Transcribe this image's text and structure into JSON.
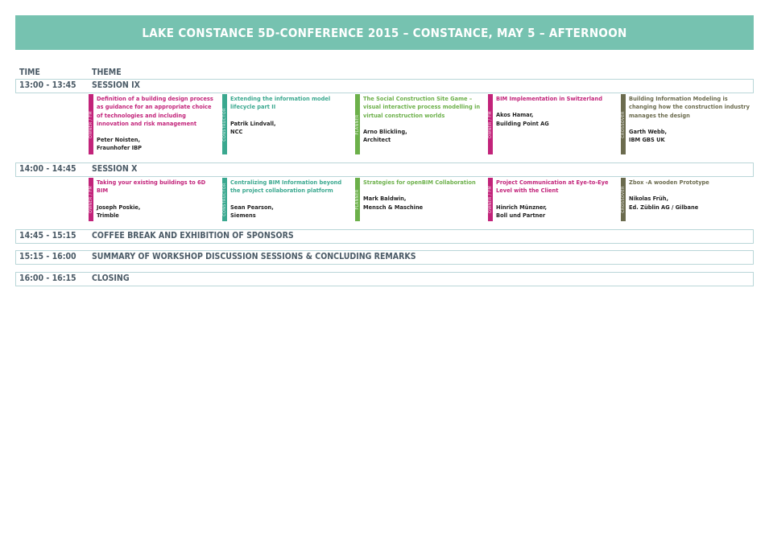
{
  "title": "LAKE CONSTANCE 5D-CONFERENCE 2015 – CONSTANCE, MAY 5 – AFTERNOON",
  "headers": {
    "time": "TIME",
    "theme": "THEME"
  },
  "colors": {
    "owner": "#c2237a",
    "constructor": "#3aa88f",
    "planner": "#6cb04a",
    "crossover": "#6b6b4e",
    "banner": "#76c2b0"
  },
  "categories": {
    "owner": "OWNER / FM",
    "constructor": "CONSTRUCTOR",
    "planner": "PLANNER",
    "crossover": "CROSSOVER"
  },
  "sessions": [
    {
      "time": "13:00 - 13:45",
      "name": "SESSION IX",
      "talks": [
        {
          "cat": "owner",
          "title": "Definition of a building design process as guidance for an appropriate choice of technologies and including innovation and risk management",
          "speaker": "Peter Noisten,",
          "org": "Fraunhofer IBP"
        },
        {
          "cat": "constructor",
          "title": "Extending the information model lifecycle part II",
          "speaker": "Patrik Lindvall,",
          "org": "NCC"
        },
        {
          "cat": "planner",
          "title": "The Social Construction Site Game – visual interactive process modelling in virtual construction worlds",
          "speaker": "Arno Blickling,",
          "org": "Architect"
        },
        {
          "cat": "owner",
          "title": "BIM Implementation in Switzerland",
          "speaker": "Akos Hamar,",
          "org": "Building Point AG"
        },
        {
          "cat": "crossover",
          "title": "Building Information Modeling is changing how the construction industry manages the design",
          "speaker": "Garth Webb,",
          "org": "IBM GBS UK"
        }
      ]
    },
    {
      "time": "14:00 - 14:45",
      "name": "SESSION X",
      "talks": [
        {
          "cat": "owner",
          "title": "Taking your existing buildings to 6D BIM",
          "speaker": "Joseph Poskie,",
          "org": "Trimble"
        },
        {
          "cat": "constructor",
          "title": "Centralizing BIM Information beyond the project collaboration platform",
          "speaker": "Sean Pearson,",
          "org": "Siemens"
        },
        {
          "cat": "planner",
          "title": "Strategies for openBIM Collaboration",
          "speaker": "Mark Baldwin,",
          "org": "Mensch & Maschine"
        },
        {
          "cat": "owner",
          "title": "Project Communication at Eye-to-Eye Level with the Client",
          "speaker": "Hinrich Münzner,",
          "org": "Boll und Partner"
        },
        {
          "cat": "crossover",
          "title": "Zbox -A wooden Prototype",
          "speaker": "Nikolas Früh,",
          "org": "Ed. Züblin AG / Gilbane"
        }
      ]
    }
  ],
  "rows": [
    {
      "time": "14:45 - 15:15",
      "label": "COFFEE BREAK AND EXHIBITION OF SPONSORS"
    },
    {
      "time": "15:15 - 16:00",
      "label": "SUMMARY OF WORKSHOP DISCUSSION SESSIONS & CONCLUDING REMARKS"
    },
    {
      "time": "16:00 - 16:15",
      "label": "CLOSING"
    }
  ]
}
